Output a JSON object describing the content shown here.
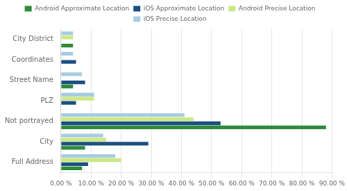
{
  "chart_data": {
    "type": "bar",
    "orientation": "horizontal",
    "categories": [
      "Full Address",
      "City",
      "Not portrayed",
      "PLZ",
      "Street Name",
      "Coordinates",
      "City District"
    ],
    "series": [
      {
        "name": "Android Approximate Location",
        "color": "#2e8b3a",
        "values": [
          7.0,
          8.0,
          88.0,
          0.0,
          4.0,
          0.0,
          4.0
        ]
      },
      {
        "name": "iOS Approximate Location",
        "color": "#1c5082",
        "values": [
          9.0,
          29.0,
          53.0,
          5.0,
          8.0,
          5.0,
          0.0
        ]
      },
      {
        "name": "Android Precise Location",
        "color": "#cce882",
        "values": [
          20.0,
          15.0,
          44.0,
          11.0,
          0.0,
          0.0,
          4.0
        ]
      },
      {
        "name": "iOS Precise Location",
        "color": "#a8cce0",
        "values": [
          18.0,
          14.0,
          41.0,
          11.0,
          7.0,
          4.0,
          4.0
        ]
      }
    ],
    "xlim": [
      0,
      90
    ],
    "xticks": [
      {
        "value": 0,
        "label": "0.00 %"
      },
      {
        "value": 10,
        "label": "10.00 %"
      },
      {
        "value": 20,
        "label": "20.00 %"
      },
      {
        "value": 30,
        "label": "30.00 %"
      },
      {
        "value": 40,
        "label": "40.00 %"
      },
      {
        "value": 50,
        "label": "50.00 %"
      },
      {
        "value": 60,
        "label": "60.00 %"
      },
      {
        "value": 70,
        "label": "70.00 %"
      },
      {
        "value": 80,
        "label": "80.00 %"
      },
      {
        "value": 90,
        "label": "90.00 %"
      }
    ],
    "grid": true,
    "legend": "top"
  }
}
